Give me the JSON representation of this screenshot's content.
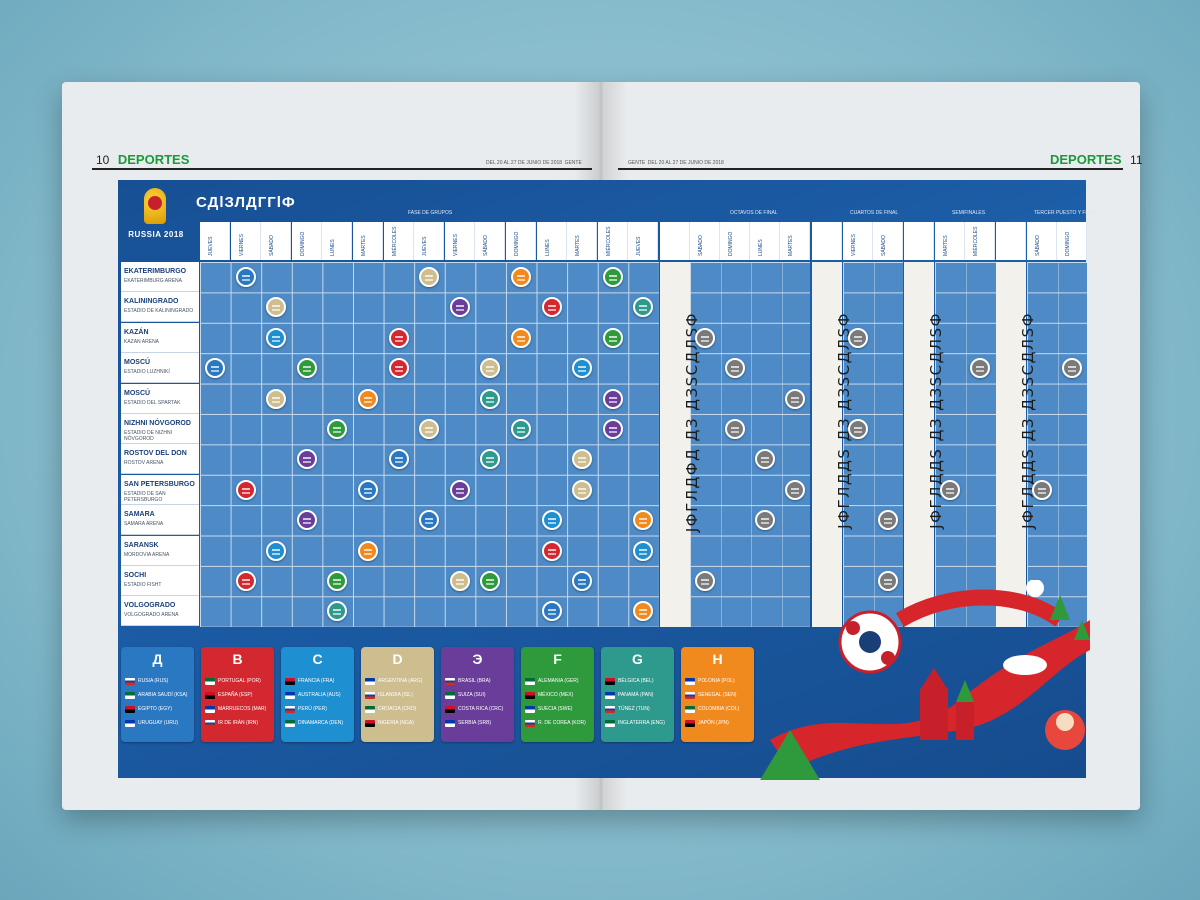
{
  "spread": {
    "left_page": {
      "page_number": "10",
      "section": "DEPORTES",
      "dateline": "DEL 20 AL 27 DE JUNIO DE 2018",
      "paper_name": "GENTE"
    },
    "right_page": {
      "page_number": "11",
      "section": "DEPORTES",
      "dateline": "DEL 20 AL 27 DE JUNIO DE 2018",
      "paper_name": "GENTE"
    }
  },
  "logo": {
    "text": "RUSSIA 2018"
  },
  "title": "СДlЗЛДГГlФ",
  "phases": {
    "groups": "FASE DE GRUPOS",
    "round16": "OCTAVOS DE FINAL",
    "quarters": "CUARTOS DE FINAL",
    "semis": "SEMIFINALES",
    "third": "TERCER PUESTO Y FINAL"
  },
  "group_days": [
    "JUEVES",
    "VIERNES",
    "SÁBADO",
    "DOMINGO",
    "LUNES",
    "MARTES",
    "MIÉRCOLES",
    "JUEVES",
    "VIERNES",
    "SÁBADO",
    "DOMINGO",
    "LUNES",
    "MARTES",
    "MIÉRCOLES",
    "JUEVES"
  ],
  "ko_days": [
    "SÁBADO",
    "DOMINGO",
    "LUNES",
    "MARTES",
    "VIERNES",
    "SÁBADO",
    "MARTES",
    "MIÉRCOLES",
    "SÁBADO",
    "DOMINGO"
  ],
  "cities": [
    {
      "name": "EKATERIMBURGO",
      "stadium": "EKATERIMBURG ARENA"
    },
    {
      "name": "KALININGRADO",
      "stadium": "ESTADIO DE KALININGRADO"
    },
    {
      "name": "KAZÁN",
      "stadium": "KAZAN ARENA"
    },
    {
      "name": "MOSCÚ",
      "stadium": "ESTADIO LUZHNIKÍ"
    },
    {
      "name": "MOSCÚ",
      "stadium": "ESTADIO DEL SPARTAK"
    },
    {
      "name": "NIZHNI NÓVGOROD",
      "stadium": "ESTADIO DE NIZHNI NÓVGOROD"
    },
    {
      "name": "ROSTOV DEL DON",
      "stadium": "ROSTOV ARENA"
    },
    {
      "name": "SAN PETERSBURGO",
      "stadium": "ESTADIO DE SAN PETERSBURGO"
    },
    {
      "name": "SAMARA",
      "stadium": "SAMARA ARENA"
    },
    {
      "name": "SARANSK",
      "stadium": "MORDOVIA ARENA"
    },
    {
      "name": "SOCHI",
      "stadium": "ESTADIO FISHT"
    },
    {
      "name": "VOLGOGRADO",
      "stadium": "VOLGOGRADO ARENA"
    }
  ],
  "rest_bands": [
    "ЈФГЛДФД ДЗ ДЗSСДЛSФ",
    "ЈФГЛДДS ДЗ ДЗSСДЛSФ",
    "ЈФГЛДДS ДЗ ДЗSСДЛSФ",
    "ЈФГЛДДS ДЗ ДЗSСДЛSФ"
  ],
  "groups": [
    {
      "letter": "Д",
      "color": "#2a78c2",
      "teams": [
        "RUSIA (RUS)",
        "ARABIA SAUDÍ (KSA)",
        "EGIPTO (EGY)",
        "URUGUAY (URU)"
      ]
    },
    {
      "letter": "B",
      "color": "#d3282f",
      "teams": [
        "PORTUGAL (POR)",
        "ESPAÑA (ESP)",
        "MARRUECOS (MAR)",
        "IR DE IRÁN (IRN)"
      ]
    },
    {
      "letter": "C",
      "color": "#1e8fd0",
      "teams": [
        "FRANCIA (FRA)",
        "AUSTRALIA (AUS)",
        "PERÚ (PER)",
        "DINAMARCA (DEN)"
      ]
    },
    {
      "letter": "D",
      "color": "#cdbd8f",
      "teams": [
        "ARGENTINA (ARG)",
        "ISLANDIA (ISL)",
        "CROACIA (CRO)",
        "NIGERIA (NGA)"
      ]
    },
    {
      "letter": "Э",
      "color": "#6a3d9a",
      "teams": [
        "BRASIL (BRA)",
        "SUIZA (SUI)",
        "COSTA RICA (CRC)",
        "SERBIA (SRB)"
      ]
    },
    {
      "letter": "F",
      "color": "#2f9a3c",
      "teams": [
        "ALEMANIA (GER)",
        "MÉXICO (MEX)",
        "SUECIA (SWE)",
        "R. DE COREA (KOR)"
      ]
    },
    {
      "letter": "G",
      "color": "#2e9a8e",
      "teams": [
        "BÉLGICA (BEL)",
        "PANAMÁ (PAN)",
        "TÚNEZ (TUN)",
        "INGLATERRA (ENG)"
      ]
    },
    {
      "letter": "H",
      "color": "#f08a1e",
      "teams": [
        "POLONIA (POL)",
        "SENEGAL (SEN)",
        "COLOMBIA (COL)",
        "JAPÓN (JPN)"
      ]
    }
  ],
  "colors": {
    "grid": "#4d8ac6",
    "panel": "#1b58a0",
    "knockout_dot": "#7a7a7a"
  }
}
